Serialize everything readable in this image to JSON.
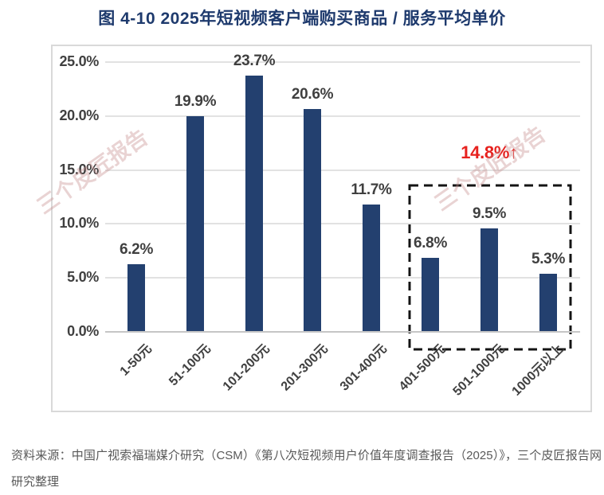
{
  "chart_data": {
    "type": "bar",
    "title": "图 4-10 2025年短视频客户端购买商品 / 服务平均单价",
    "categories": [
      "1-50元",
      "51-100元",
      "101-200元",
      "201-300元",
      "301-400元",
      "401-500元",
      "501-1000元",
      "1000元以上"
    ],
    "values": [
      6.2,
      19.9,
      23.7,
      20.6,
      11.7,
      6.8,
      9.5,
      5.3
    ],
    "data_labels": [
      "6.2%",
      "19.9%",
      "23.7%",
      "20.6%",
      "11.7%",
      "6.8%",
      "9.5%",
      "5.3%"
    ],
    "xlabel": "",
    "ylabel": "",
    "ylim": [
      0,
      25
    ],
    "yticks": [
      0,
      5,
      10,
      15,
      20,
      25
    ],
    "ytick_labels": [
      "0.0%",
      "5.0%",
      "10.0%",
      "15.0%",
      "20.0%",
      "25.0%"
    ],
    "grid": true,
    "legend": false,
    "bar_color": "#23406f",
    "annotation": {
      "text": "14.8%↑",
      "color": "#e7211e",
      "highlighted_categories": [
        "401-500元",
        "501-1000元",
        "1000元以上"
      ],
      "highlight_from_index": 5,
      "highlight_to_index": 7,
      "highlight_style": "black-dashed-box"
    }
  },
  "watermark": {
    "text": "三个皮匠报告"
  },
  "source_note": "资料来源：中国广视索福瑞媒介研究（CSM）《第八次短视频用户价值年度调查报告（2025）》，三个皮匠报告网研究整理",
  "colors": {
    "bar": "#23406f",
    "title_text": "#1e3a6d",
    "annotation_red": "#e7211e",
    "axis_text": "#404040",
    "value_label_text": "#3f3f3f",
    "gridline": "#e2e2e2",
    "axis_line": "#c6c6c6",
    "panel_border": "#d9d9d9",
    "source_text": "#595959",
    "watermark": "rgba(196,140,140,0.38)"
  }
}
